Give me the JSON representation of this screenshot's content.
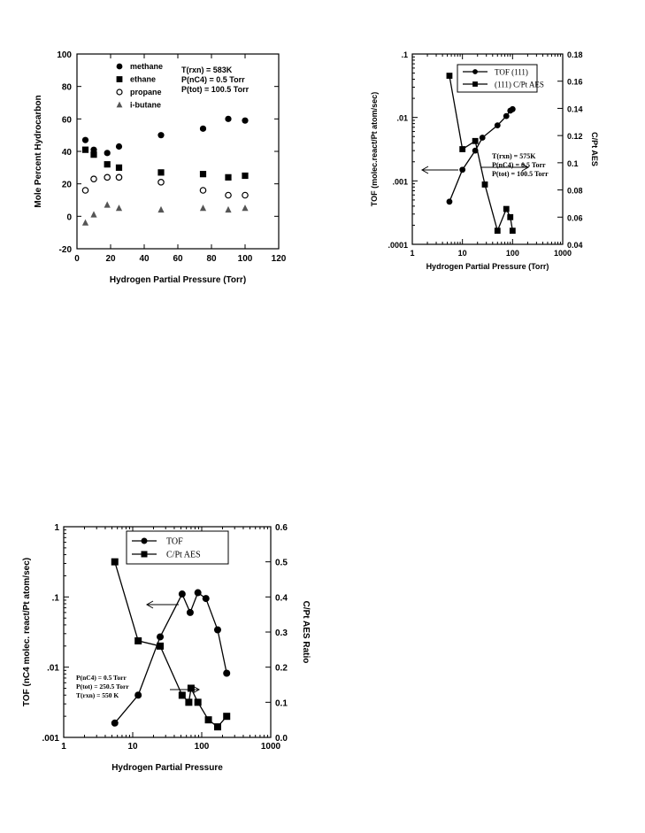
{
  "chart_data": [
    {
      "type": "scatter",
      "xlabel": "Hydrogen Partial Pressure  (Torr)",
      "ylabel": "Mole  Percent  Hydrocarbon",
      "xlim": [
        0,
        120
      ],
      "ylim": [
        -20,
        100
      ],
      "xticks": [
        "0",
        "20",
        "40",
        "60",
        "80",
        "100",
        "120"
      ],
      "yticks": [
        "-20",
        "0",
        "20",
        "40",
        "60",
        "80",
        "100"
      ],
      "legend_position": "top-left",
      "annotation": [
        "T(rxn)  =  583K",
        "P(nC4)  =  0.5  Torr",
        "P(tot)  =  100.5  Torr"
      ],
      "series": [
        {
          "name": "methane",
          "marker": "filled-circle",
          "points": [
            [
              5,
              47
            ],
            [
              10,
              41
            ],
            [
              18,
              39
            ],
            [
              25,
              43
            ],
            [
              50,
              50
            ],
            [
              75,
              54
            ],
            [
              90,
              60
            ],
            [
              100,
              59
            ]
          ]
        },
        {
          "name": "ethane",
          "marker": "filled-square",
          "points": [
            [
              5,
              41
            ],
            [
              10,
              38
            ],
            [
              18,
              32
            ],
            [
              25,
              30
            ],
            [
              50,
              27
            ],
            [
              75,
              26
            ],
            [
              90,
              24
            ],
            [
              100,
              25
            ]
          ]
        },
        {
          "name": "propane",
          "marker": "open-circle",
          "points": [
            [
              5,
              16
            ],
            [
              10,
              23
            ],
            [
              18,
              24
            ],
            [
              25,
              24
            ],
            [
              50,
              21
            ],
            [
              75,
              16
            ],
            [
              90,
              13
            ],
            [
              100,
              13
            ]
          ]
        },
        {
          "name": "i-butane",
          "marker": "filled-triangle",
          "points": [
            [
              5,
              -4
            ],
            [
              10,
              1
            ],
            [
              18,
              7
            ],
            [
              25,
              5
            ],
            [
              50,
              4
            ],
            [
              75,
              5
            ],
            [
              90,
              4
            ],
            [
              100,
              5
            ]
          ]
        }
      ]
    },
    {
      "type": "line",
      "xscale": "log",
      "yscale": "log",
      "xlabel": "Hydrogen Partial Pressure (Torr)",
      "ylabel": "TOF (molec.react/Pt atom/sec)",
      "y2label": "C/Pt AES",
      "xlim": [
        1,
        1000
      ],
      "ylim": [
        0.0001,
        0.1
      ],
      "y2lim": [
        0.04,
        0.18
      ],
      "xticks": [
        "1",
        "10",
        "100",
        "1000"
      ],
      "yticks": [
        ".0001",
        ".001",
        ".01",
        ".1"
      ],
      "y2ticks": [
        "0.04",
        "0.06",
        "0.08",
        "0.1",
        "0.12",
        "0.14",
        "0.16",
        "0.18"
      ],
      "legend_position": "top",
      "annotation": [
        "T(rxn) = 575K",
        "P(nC4) = 0.5 Torr",
        "P(tot) = 100.5 Torr"
      ],
      "series": [
        {
          "name": "TOF (111)",
          "marker": "filled-circle",
          "axis": "left",
          "points": [
            [
              5.5,
              0.00047
            ],
            [
              10,
              0.0015
            ],
            [
              18,
              0.003
            ],
            [
              25,
              0.0048
            ],
            [
              50,
              0.0075
            ],
            [
              75,
              0.0105
            ],
            [
              90,
              0.0128
            ],
            [
              100,
              0.0135
            ]
          ]
        },
        {
          "name": "(111) C/Pt AES",
          "marker": "filled-square",
          "axis": "right",
          "points": [
            [
              5.5,
              0.164
            ],
            [
              10,
              0.11
            ],
            [
              18,
              0.116
            ],
            [
              28,
              0.084
            ],
            [
              50,
              0.05
            ],
            [
              75,
              0.066
            ],
            [
              90,
              0.06
            ],
            [
              100,
              0.05
            ]
          ]
        }
      ]
    },
    {
      "type": "line",
      "xscale": "log",
      "yscale": "log",
      "xlabel": "Hydrogen Partial Pressure",
      "ylabel": "TOF (nC4 molec. react/Pt atom/sec)",
      "y2label": "C/Pt AES Ratio",
      "xlim": [
        1,
        1000
      ],
      "ylim": [
        0.001,
        1
      ],
      "y2lim": [
        0,
        0.6
      ],
      "xticks": [
        "1",
        "10",
        "100",
        "1000"
      ],
      "yticks": [
        ".001",
        ".01",
        ".1",
        "1"
      ],
      "y2ticks": [
        "0.0",
        "0.1",
        "0.2",
        "0.3",
        "0.4",
        "0.5",
        "0.6"
      ],
      "legend_position": "top",
      "annotation": [
        "P(nC4) = 0.5 Torr",
        "P(tot) = 250.5 Torr",
        "T(rxn) = 550 K"
      ],
      "series": [
        {
          "name": "TOF",
          "marker": "filled-circle",
          "axis": "left",
          "points": [
            [
              5.5,
              0.0016
            ],
            [
              12,
              0.004
            ],
            [
              25,
              0.027
            ],
            [
              52,
              0.11
            ],
            [
              68,
              0.06
            ],
            [
              88,
              0.115
            ],
            [
              115,
              0.095
            ],
            [
              170,
              0.034
            ],
            [
              230,
              0.0082
            ]
          ]
        },
        {
          "name": "C/Pt AES",
          "marker": "filled-square",
          "axis": "right",
          "points": [
            [
              5.5,
              0.5
            ],
            [
              12,
              0.275
            ],
            [
              25,
              0.26
            ],
            [
              52,
              0.12
            ],
            [
              65,
              0.1
            ],
            [
              70,
              0.14
            ],
            [
              88,
              0.1
            ],
            [
              125,
              0.05
            ],
            [
              170,
              0.03
            ],
            [
              230,
              0.06
            ]
          ]
        }
      ]
    }
  ]
}
